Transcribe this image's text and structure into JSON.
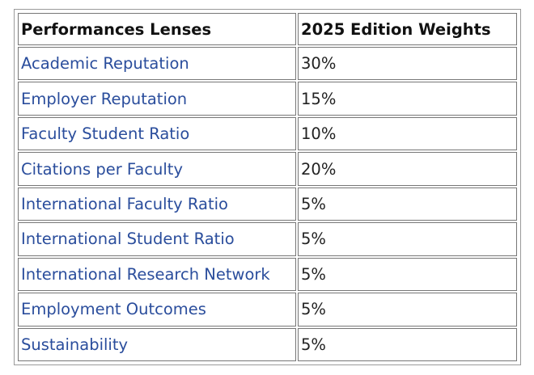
{
  "table": {
    "headers": [
      "Performances Lenses",
      "2025 Edition Weights"
    ],
    "rows": [
      {
        "lens": "Academic Reputation",
        "weight": "30%"
      },
      {
        "lens": "Employer Reputation",
        "weight": "15%"
      },
      {
        "lens": "Faculty Student Ratio",
        "weight": "10%"
      },
      {
        "lens": "Citations per Faculty",
        "weight": "20%"
      },
      {
        "lens": "International Faculty Ratio",
        "weight": "5%"
      },
      {
        "lens": "International Student Ratio",
        "weight": "5%"
      },
      {
        "lens": "International Research Network",
        "weight": "5%"
      },
      {
        "lens": "Employment Outcomes",
        "weight": "5%"
      },
      {
        "lens": "Sustainability",
        "weight": "5%"
      }
    ]
  },
  "colors": {
    "link": "#2a4d9c",
    "text": "#222222",
    "border": "#777777"
  }
}
